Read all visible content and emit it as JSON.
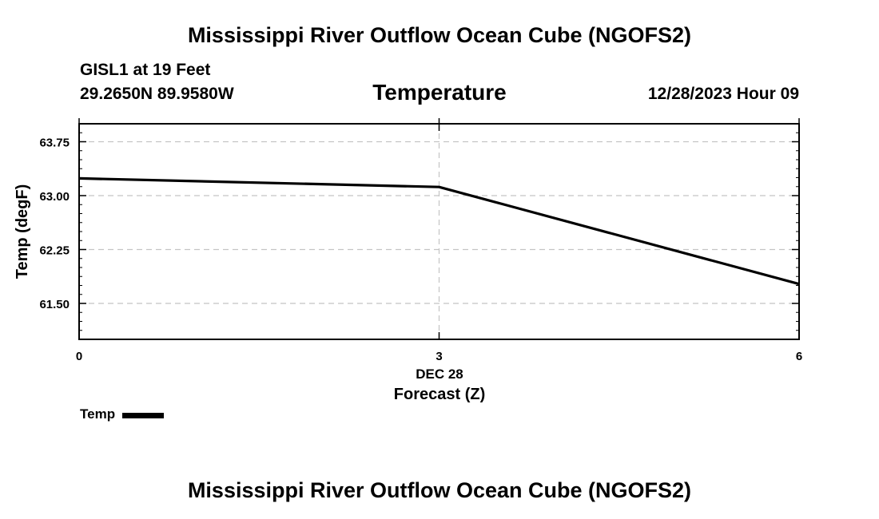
{
  "header": {
    "title": "Mississippi River Outflow Ocean Cube (NGOFS2)",
    "station": "GISL1 at 19 Feet",
    "coordinates": "29.2650N  89.9580W",
    "variable": "Temperature",
    "datetime": "12/28/2023 Hour 09"
  },
  "legend": {
    "label": "Temp",
    "color": "#000000"
  },
  "footer": {
    "title": "Mississippi River Outflow Ocean Cube (NGOFS2)"
  },
  "chart_data": {
    "type": "line",
    "title": "Temperature",
    "xlabel": "Forecast (Z)",
    "ylabel": "Temp (degF)",
    "xlim": [
      0,
      6
    ],
    "ylim": [
      61.0,
      64.0
    ],
    "xticks": [
      0,
      3,
      6
    ],
    "xtick_labels": [
      "0",
      "3",
      "6"
    ],
    "x_date_label": "DEC 28",
    "yticks": [
      61.5,
      62.25,
      63.0,
      63.75
    ],
    "ytick_labels": [
      "61.50",
      "62.25",
      "63.00",
      "63.75"
    ],
    "grid": true,
    "series": [
      {
        "name": "Temp",
        "color": "#000000",
        "x": [
          0,
          3,
          6
        ],
        "values": [
          63.24,
          63.12,
          61.77
        ]
      }
    ]
  }
}
